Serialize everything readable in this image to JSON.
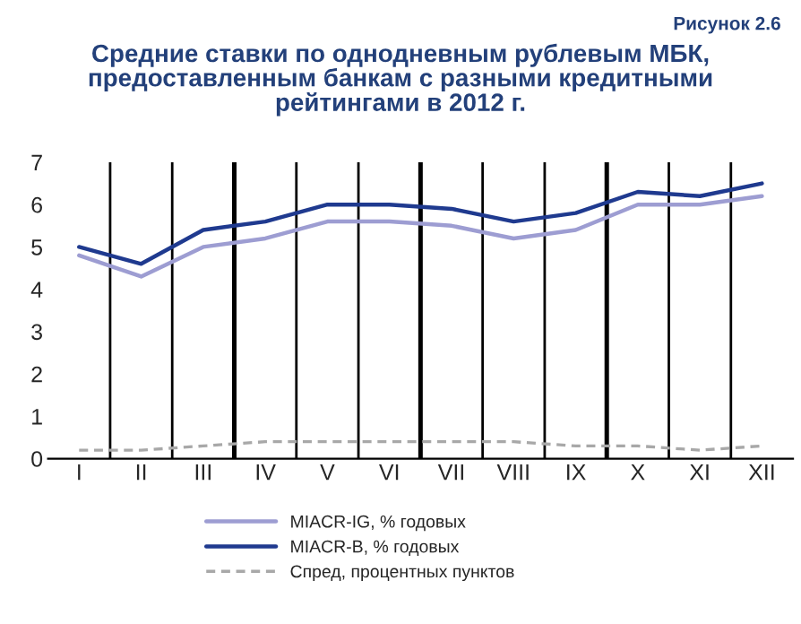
{
  "chart_data": {
    "type": "line",
    "title": "Средние ставки по однодневным рублевым МБК,\nпредоставленным банкам с разными кредитными\nрейтингами в 2012 г.",
    "annotations": [
      "Рисунок 2.6"
    ],
    "categories": [
      "I",
      "II",
      "III",
      "IV",
      "V",
      "VI",
      "VII",
      "VIII",
      "IX",
      "X",
      "XI",
      "XII"
    ],
    "series": [
      {
        "name": "MIACR-IG, % годовых",
        "color": "#9d9dd2",
        "values": [
          4.8,
          4.3,
          5.0,
          5.2,
          5.6,
          5.6,
          5.5,
          5.2,
          5.4,
          6.0,
          6.0,
          6.2
        ],
        "line_style": "solid"
      },
      {
        "name": "MIACR-B, % годовых",
        "color": "#1f3a8f",
        "values": [
          5.0,
          4.6,
          5.4,
          5.6,
          6.0,
          6.0,
          5.9,
          5.6,
          5.8,
          6.3,
          6.2,
          6.5
        ],
        "line_style": "solid"
      },
      {
        "name": "Спред, процентных пунктов",
        "color": "#a8a8a8",
        "values": [
          0.2,
          0.2,
          0.3,
          0.4,
          0.4,
          0.4,
          0.4,
          0.4,
          0.3,
          0.3,
          0.2,
          0.3
        ],
        "line_style": "dashed"
      }
    ],
    "ylim": [
      0,
      7
    ],
    "yticks": [
      0,
      1,
      2,
      3,
      4,
      5,
      6,
      7
    ],
    "grid": "x",
    "legend": "bottom",
    "marker": "none"
  }
}
